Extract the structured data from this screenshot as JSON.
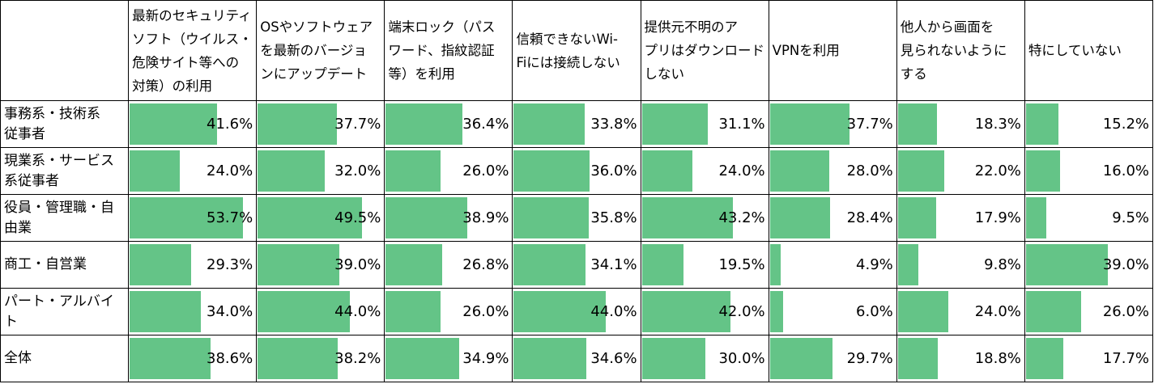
{
  "chart_data": {
    "type": "table",
    "bar_color": "#64c487",
    "xlim": [
      0,
      60
    ],
    "columns": [
      "最新のセキュリティ\nソフト（ウイルス・\n危険サイト等への\n対策）の利用",
      "OSやソフトウェア\nを最新のバージョ\nンにアップデート",
      "端末ロック（パス\nワード、指紋認証\n等）を利用",
      "信頼できないWi-\nFiには接続しない",
      "提供元不明のア\nプリはダウンロード\nしない",
      "VPNを利用",
      "他人から画面を\n見られないように\nする",
      "特にしていない"
    ],
    "rows": [
      {
        "label": "事務系・技術系\n従事者",
        "values": [
          41.6,
          37.7,
          36.4,
          33.8,
          31.1,
          37.7,
          18.3,
          15.2
        ],
        "texts": [
          "41.6%",
          "37.7%",
          "36.4%",
          "33.8%",
          "31.1%",
          "37.7%",
          "18.3%",
          "15.2%"
        ]
      },
      {
        "label": "現業系・サービス\n系従事者",
        "values": [
          24.0,
          32.0,
          26.0,
          36.0,
          24.0,
          28.0,
          22.0,
          16.0
        ],
        "texts": [
          "24.0%",
          "32.0%",
          "26.0%",
          "36.0%",
          "24.0%",
          "28.0%",
          "22.0%",
          "16.0%"
        ]
      },
      {
        "label": "役員・管理職・自\n由業",
        "values": [
          53.7,
          49.5,
          38.9,
          35.8,
          43.2,
          28.4,
          17.9,
          9.5
        ],
        "texts": [
          "53.7%",
          "49.5%",
          "38.9%",
          "35.8%",
          "43.2%",
          "28.4%",
          "17.9%",
          "9.5%"
        ]
      },
      {
        "label": "商工・自営業",
        "values": [
          29.3,
          39.0,
          26.8,
          34.1,
          19.5,
          4.9,
          9.8,
          39.0
        ],
        "texts": [
          "29.3%",
          "39.0%",
          "26.8%",
          "34.1%",
          "19.5%",
          "4.9%",
          "9.8%",
          "39.0%"
        ]
      },
      {
        "label": "パート・アルバイト",
        "values": [
          34.0,
          44.0,
          26.0,
          44.0,
          42.0,
          6.0,
          24.0,
          26.0
        ],
        "texts": [
          "34.0%",
          "44.0%",
          "26.0%",
          "44.0%",
          "42.0%",
          "6.0%",
          "24.0%",
          "26.0%"
        ]
      },
      {
        "label": "全体",
        "values": [
          38.6,
          38.2,
          34.9,
          34.6,
          30.0,
          29.7,
          18.8,
          17.7
        ],
        "texts": [
          "38.6%",
          "38.2%",
          "34.9%",
          "34.6%",
          "30.0%",
          "29.7%",
          "18.8%",
          "17.7%"
        ]
      }
    ]
  }
}
